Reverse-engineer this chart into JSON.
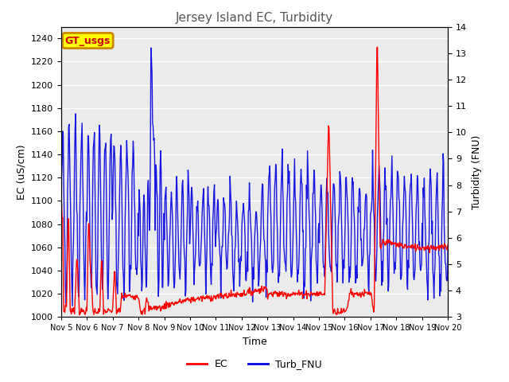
{
  "title": "Jersey Island EC, Turbidity",
  "xlabel": "Time",
  "ylabel_left": "EC (uS/cm)",
  "ylabel_right": "Turbidity (FNU)",
  "ylim_left": [
    1000,
    1250
  ],
  "ylim_right": [
    3.0,
    14.0
  ],
  "yticks_left": [
    1000,
    1020,
    1040,
    1060,
    1080,
    1100,
    1120,
    1140,
    1160,
    1180,
    1200,
    1220,
    1240
  ],
  "yticks_right": [
    3.0,
    4.0,
    5.0,
    6.0,
    7.0,
    8.0,
    9.0,
    10.0,
    11.0,
    12.0,
    13.0,
    14.0
  ],
  "xtick_labels": [
    "Nov 5",
    "Nov 6",
    "Nov 7",
    "Nov 8",
    "Nov 9",
    "Nov 10",
    "Nov 11",
    "Nov 12",
    "Nov 13",
    "Nov 14",
    "Nov 15",
    "Nov 16",
    "Nov 17",
    "Nov 18",
    "Nov 19",
    "Nov 20"
  ],
  "legend_labels": [
    "EC",
    "Turb_FNU"
  ],
  "ec_color": "#ff0000",
  "turb_color": "#0000dd",
  "background_color": "#ffffff",
  "plot_bg_color": "#ebebeb",
  "grid_color": "#ffffff",
  "annotation_text": "GT_usgs",
  "annotation_bg": "#ffff00",
  "annotation_border": "#cc8800",
  "title_color": "#555555",
  "linewidth": 1.0
}
